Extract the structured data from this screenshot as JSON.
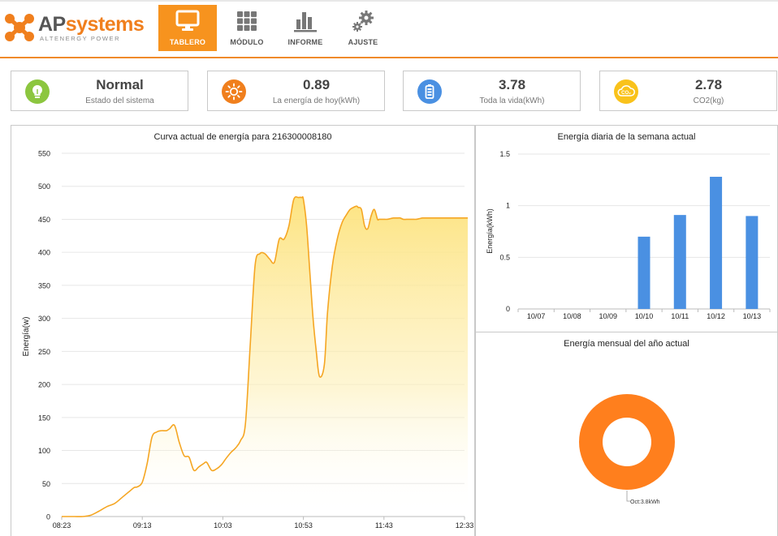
{
  "brand": {
    "name_ap": "AP",
    "name_rest": "systems",
    "tagline": "ALTENERGY POWER",
    "accent_color": "#f7931e"
  },
  "nav": [
    {
      "label": "TABLERO",
      "icon": "monitor-icon",
      "active": true
    },
    {
      "label": "MÓDULO",
      "icon": "grid-icon",
      "active": false
    },
    {
      "label": "INFORME",
      "icon": "bar-chart-icon",
      "active": false
    },
    {
      "label": "AJUSTE",
      "icon": "gears-icon",
      "active": false
    }
  ],
  "stats": [
    {
      "value": "Normal",
      "label": "Estado del sistema",
      "icon": "lightbulb-icon",
      "color": "#8cc63f"
    },
    {
      "value": "0.89",
      "label": "La energía de hoy(kWh)",
      "icon": "sun-icon",
      "color": "#f07f1d"
    },
    {
      "value": "3.78",
      "label": "Toda la vida(kWh)",
      "icon": "battery-icon",
      "color": "#4a90e2"
    },
    {
      "value": "2.78",
      "label": "CO2(kg)",
      "icon": "co2-icon",
      "color": "#f9c21b"
    }
  ],
  "chart_data": [
    {
      "type": "area",
      "title": "Curva actual de energía para 216300008180",
      "ylabel": "Energía(w)",
      "xlabel": "",
      "ylim": [
        0,
        550
      ],
      "yticks": [
        0,
        50,
        100,
        150,
        200,
        250,
        300,
        350,
        400,
        450,
        500,
        550
      ],
      "xticks": [
        "08:23",
        "09:13",
        "10:03",
        "10:53",
        "11:43",
        "12:33"
      ],
      "xtick_minutes": [
        503,
        553,
        603,
        653,
        703,
        753
      ],
      "series": [
        {
          "color": "#f5a623",
          "x": [
            503,
            506,
            511,
            516,
            521,
            526,
            531,
            536,
            541,
            545,
            548,
            550,
            553,
            556,
            559,
            562,
            565,
            568,
            570,
            573,
            576,
            579,
            582,
            585,
            588,
            591,
            593,
            596,
            599,
            602,
            605,
            608,
            611,
            614,
            617,
            620,
            623,
            626,
            629,
            632,
            635,
            638,
            641,
            644,
            647,
            650,
            652,
            653,
            655,
            657,
            659,
            661,
            663,
            666,
            668,
            671,
            674,
            677,
            680,
            682,
            684,
            686,
            687,
            689,
            691,
            693,
            695,
            697,
            699,
            700,
            702,
            703,
            705,
            707,
            709,
            711,
            713,
            715,
            717,
            719,
            721,
            723,
            725,
            727,
            730,
            733,
            736,
            740,
            745,
            750,
            755
          ],
          "y": [
            0,
            0,
            0,
            0,
            2,
            8,
            15,
            20,
            30,
            38,
            44,
            45,
            52,
            80,
            120,
            128,
            130,
            130,
            133,
            138,
            112,
            92,
            90,
            70,
            75,
            80,
            82,
            70,
            72,
            78,
            88,
            97,
            104,
            115,
            140,
            260,
            380,
            398,
            398,
            390,
            385,
            420,
            420,
            440,
            480,
            483,
            483,
            480,
            440,
            370,
            300,
            250,
            212,
            230,
            310,
            380,
            420,
            445,
            458,
            465,
            468,
            470,
            468,
            465,
            440,
            436,
            455,
            465,
            450,
            450,
            450,
            450,
            450,
            451,
            452,
            452,
            452,
            450,
            450,
            450,
            450,
            450,
            451,
            452,
            452,
            452,
            452,
            452,
            452,
            452,
            452
          ]
        }
      ]
    },
    {
      "type": "bar",
      "title": "Energía diaria de la semana actual",
      "ylabel": "Energía(kWh)",
      "xlabel": "",
      "ylim": [
        0,
        1.5
      ],
      "yticks": [
        "0",
        "0.5",
        "1",
        "1.5"
      ],
      "ytick_values": [
        0,
        0.5,
        1,
        1.5
      ],
      "categories": [
        "10/07",
        "10/08",
        "10/09",
        "10/10",
        "10/11",
        "10/12",
        "10/13"
      ],
      "values": [
        0,
        0,
        0,
        0.7,
        0.91,
        1.28,
        0.9
      ],
      "color": "#4a90e2"
    },
    {
      "type": "pie",
      "title": "Energía mensual del año actual",
      "slices": [
        {
          "label": "Oct:3.8kWh",
          "value": 3.8,
          "color": "#ff7f1d"
        }
      ]
    }
  ]
}
